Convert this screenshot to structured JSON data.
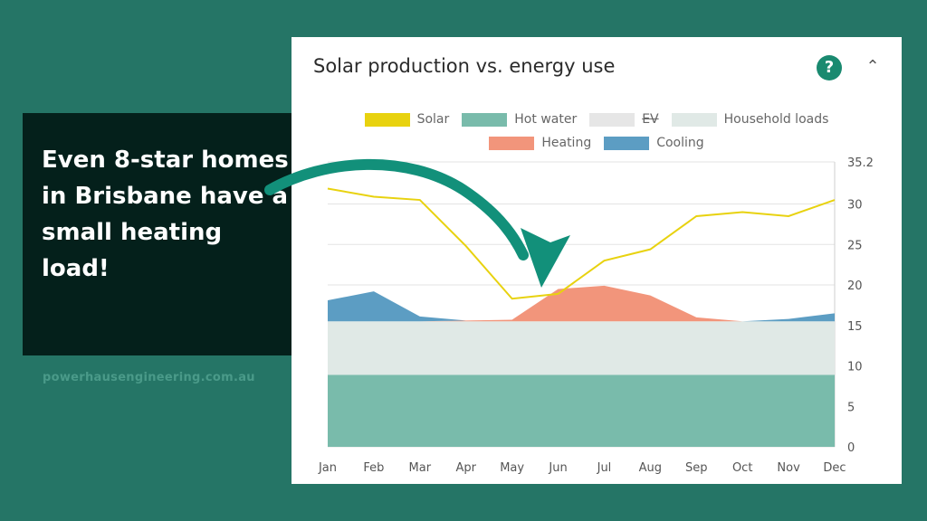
{
  "callout": {
    "text": "Even 8-star homes in Brisbane have a small heating load!"
  },
  "footer": {
    "website": "powerhausengineering.com.au"
  },
  "card": {
    "title": "Solar production vs. energy use",
    "help_glyph": "?",
    "collapse_glyph": "⌃"
  },
  "chart_data": {
    "type": "area",
    "title": "Solar production vs. energy use",
    "categories": [
      "Jan",
      "Feb",
      "Mar",
      "Apr",
      "May",
      "Jun",
      "Jul",
      "Aug",
      "Sep",
      "Oct",
      "Nov",
      "Dec"
    ],
    "ylim": [
      0,
      35.2
    ],
    "y_ticks": [
      "35.2",
      "30",
      "25",
      "20",
      "15",
      "10",
      "5",
      "0"
    ],
    "y_axis_side": "right",
    "grid": true,
    "legend_placement": "top-center",
    "stacked": true,
    "series": [
      {
        "name": "Hot water",
        "kind": "area",
        "color": "#79bbab",
        "values": [
          8.9,
          8.9,
          8.9,
          8.9,
          8.9,
          8.9,
          8.9,
          8.9,
          8.9,
          8.9,
          8.9,
          8.9
        ]
      },
      {
        "name": "EV",
        "kind": "area",
        "color": "#e6e6e6",
        "hidden": true,
        "values": [
          0,
          0,
          0,
          0,
          0,
          0,
          0,
          0,
          0,
          0,
          0,
          0
        ]
      },
      {
        "name": "Household loads",
        "kind": "area",
        "color": "#e0e9e6",
        "values": [
          6.6,
          6.6,
          6.6,
          6.6,
          6.6,
          6.6,
          6.6,
          6.6,
          6.6,
          6.6,
          6.6,
          6.6
        ]
      },
      {
        "name": "Heating",
        "kind": "area",
        "color": "#f2957b",
        "values": [
          0,
          0,
          0,
          0.1,
          0.2,
          4.0,
          4.4,
          3.2,
          0.5,
          0,
          0,
          0
        ]
      },
      {
        "name": "Cooling",
        "kind": "area",
        "color": "#5c9dc3",
        "values": [
          2.6,
          3.7,
          0.6,
          0,
          0,
          0,
          0,
          0,
          0,
          0,
          0.3,
          1.0
        ]
      },
      {
        "name": "Solar",
        "kind": "line",
        "color": "#e8d20f",
        "values": [
          31.9,
          30.9,
          30.5,
          24.8,
          18.3,
          18.9,
          23.0,
          24.4,
          28.5,
          29.0,
          28.5,
          30.5
        ]
      }
    ],
    "legend_rows": [
      [
        "Solar",
        "Hot water",
        "EV",
        "Household loads"
      ],
      [
        "Heating",
        "Cooling"
      ]
    ]
  },
  "colors": {
    "background": "#257566",
    "callout_bg": "#04201b",
    "arrow": "#12907a",
    "accent": "#1a8a70"
  }
}
